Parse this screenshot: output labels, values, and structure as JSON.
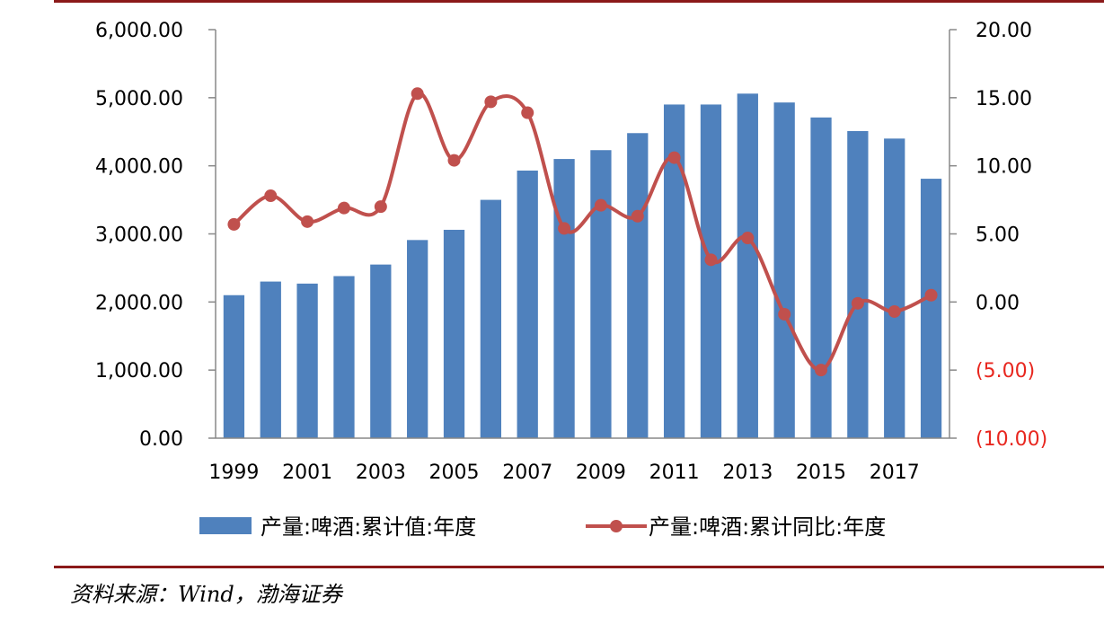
{
  "chart_data": {
    "type": "bar",
    "x": [
      1999,
      2000,
      2001,
      2002,
      2003,
      2004,
      2005,
      2006,
      2007,
      2008,
      2009,
      2010,
      2011,
      2012,
      2013,
      2014,
      2015,
      2016,
      2017,
      2018
    ],
    "x_tick_labels": [
      "1999",
      "2001",
      "2003",
      "2005",
      "2007",
      "2009",
      "2011",
      "2013",
      "2015",
      "2017"
    ],
    "series": [
      {
        "name": "产量:啤酒:累计值:年度",
        "type": "bar",
        "axis": "left",
        "color": "#4f81bd",
        "values": [
          2100,
          2300,
          2270,
          2380,
          2550,
          2910,
          3060,
          3500,
          3930,
          4100,
          4230,
          4480,
          4900,
          4900,
          5060,
          4930,
          4710,
          4510,
          4400,
          3810
        ]
      },
      {
        "name": "产量:啤酒:累计同比:年度",
        "type": "line",
        "axis": "right",
        "color": "#c0504d",
        "values": [
          5.7,
          7.8,
          5.9,
          6.9,
          7.0,
          15.3,
          10.4,
          14.7,
          13.9,
          5.4,
          7.1,
          6.3,
          10.6,
          3.1,
          4.7,
          -0.9,
          -5.0,
          -0.1,
          -0.7,
          0.5
        ]
      }
    ],
    "y_left": {
      "range": [
        0,
        6000
      ],
      "tick_labels": [
        "0.00",
        "1,000.00",
        "2,000.00",
        "3,000.00",
        "4,000.00",
        "5,000.00",
        "6,000.00"
      ]
    },
    "y_right": {
      "range": [
        -10,
        20
      ],
      "tick_labels": [
        "(10.00)",
        "(5.00)",
        "0.00",
        "5.00",
        "10.00",
        "15.00",
        "20.00"
      ]
    },
    "negative_tick_color": "#e8271f",
    "legend_position": "bottom",
    "grid": false
  },
  "source": "资料来源：Wind，渤海证券"
}
